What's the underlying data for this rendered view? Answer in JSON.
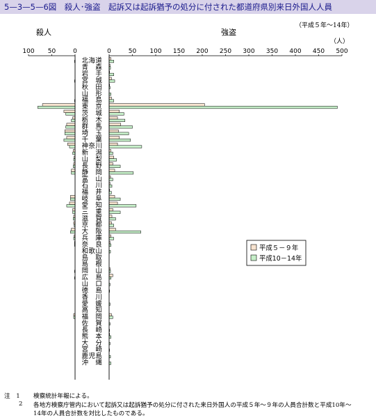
{
  "title": "5—3—5—6図　殺人･強盗　起訴又は起訴猶予の処分に付された都道府県別来日外国人人員",
  "period_note": "（平成５年～14年）",
  "unit": "（人）",
  "colors": {
    "series_a": "#f7e3cf",
    "series_b": "#c6efc9",
    "title_bg": "#d9d3ea",
    "title_text": "#1a1a8c"
  },
  "chart_data": {
    "type": "bar",
    "orientation": "horizontal-butterfly",
    "title": "殺人･強盗　起訴又は起訴猶予の処分に付された都道府県別来日外国人人員",
    "left_panel": {
      "label": "殺人",
      "ticks": [
        100,
        50,
        0
      ],
      "xlim": [
        0,
        100
      ]
    },
    "right_panel": {
      "label": "強盗",
      "ticks": [
        0,
        50,
        100,
        150,
        200,
        250,
        300,
        350,
        400,
        450,
        500
      ],
      "xlim": [
        0,
        500
      ]
    },
    "legend": {
      "position": "right",
      "entries": [
        "平成５－９年",
        "平成10－14年"
      ]
    },
    "categories": [
      "北海道",
      "青森",
      "岩手",
      "宮城",
      "秋田",
      "山形",
      "福島",
      "茨城",
      "栃木",
      "群馬",
      "埼玉",
      "千葉",
      "東京",
      "神奈川",
      "新潟",
      "富山",
      "石川",
      "福井",
      "山梨",
      "長野",
      "岐阜",
      "静岡",
      "愛知",
      "三重",
      "滋賀",
      "京都",
      "大阪",
      "兵庫",
      "奈良",
      "和歌山",
      "鳥取",
      "島根",
      "岡山",
      "広島",
      "山口",
      "徳島",
      "香川",
      "愛媛",
      "高知",
      "福岡",
      "佐賀",
      "長崎",
      "熊本",
      "大分",
      "宮崎",
      "鹿児島",
      "沖縄"
    ],
    "labels": [
      "北海道",
      "青　森",
      "岩　手",
      "宮　城",
      "秋　田",
      "山　形",
      "福　島",
      "東　京",
      "茨　城",
      "栃　木",
      "群　馬",
      "埼　玉",
      "千　葉",
      "神奈川",
      "新　潟",
      "山　梨",
      "長　野",
      "静　岡",
      "富　山",
      "石　川",
      "福　井",
      "岐　阜",
      "愛　知",
      "三　重",
      "滋　賀",
      "京　都",
      "大　阪",
      "兵　庫",
      "奈　良",
      "和歌山",
      "鳥　取",
      "島　根",
      "岡　山",
      "広　島",
      "山　口",
      "徳　島",
      "香　川",
      "愛　媛",
      "高　知",
      "福　岡",
      "佐　賀",
      "長　崎",
      "熊　本",
      "大　分",
      "宮　崎",
      "鹿児島",
      "沖　縄"
    ],
    "series": [
      {
        "name": "平成５－９年",
        "murder": [
          0,
          0,
          0,
          0,
          0,
          0,
          0,
          70,
          24,
          5,
          18,
          22,
          18,
          16,
          4,
          2,
          3,
          8,
          0,
          0,
          0,
          10,
          12,
          5,
          3,
          3,
          8,
          2,
          1,
          0,
          0,
          0,
          0,
          0,
          0,
          0,
          0,
          0,
          0,
          3,
          0,
          0,
          0,
          0,
          0,
          0,
          0
        ],
        "robbery": [
          4,
          2,
          1,
          5,
          1,
          0,
          5,
          205,
          22,
          18,
          25,
          20,
          22,
          18,
          4,
          10,
          8,
          12,
          3,
          2,
          1,
          12,
          18,
          8,
          6,
          5,
          14,
          4,
          2,
          0,
          0,
          0,
          2,
          8,
          0,
          0,
          0,
          0,
          0,
          5,
          0,
          0,
          1,
          0,
          0,
          0,
          0
        ]
      },
      {
        "name": "平成10－14年",
        "murder": [
          1,
          0,
          0,
          1,
          0,
          0,
          1,
          80,
          20,
          8,
          20,
          22,
          24,
          12,
          5,
          3,
          4,
          8,
          0,
          0,
          0,
          10,
          18,
          5,
          4,
          2,
          10,
          3,
          1,
          0,
          0,
          0,
          1,
          1,
          0,
          0,
          0,
          0,
          0,
          3,
          0,
          0,
          0,
          0,
          0,
          0,
          0
        ],
        "robbery": [
          10,
          3,
          10,
          12,
          2,
          4,
          10,
          490,
          32,
          34,
          50,
          42,
          46,
          70,
          8,
          16,
          24,
          52,
          8,
          6,
          5,
          24,
          58,
          24,
          14,
          10,
          68,
          10,
          4,
          3,
          0,
          0,
          3,
          4,
          2,
          1,
          0,
          2,
          0,
          8,
          2,
          1,
          4,
          2,
          1,
          3,
          4
        ]
      }
    ]
  },
  "notes": [
    {
      "mark": "注　1",
      "text": "検察統計年報による。"
    },
    {
      "mark": "2",
      "text": "各地方検察庁管内において起訴又は起訴猶予の処分に付された来日外国人の平成５年～９年の人員合計数と平成10年～"
    },
    {
      "mark": "",
      "text": "14年の人員合計数を対比したものである。"
    }
  ]
}
